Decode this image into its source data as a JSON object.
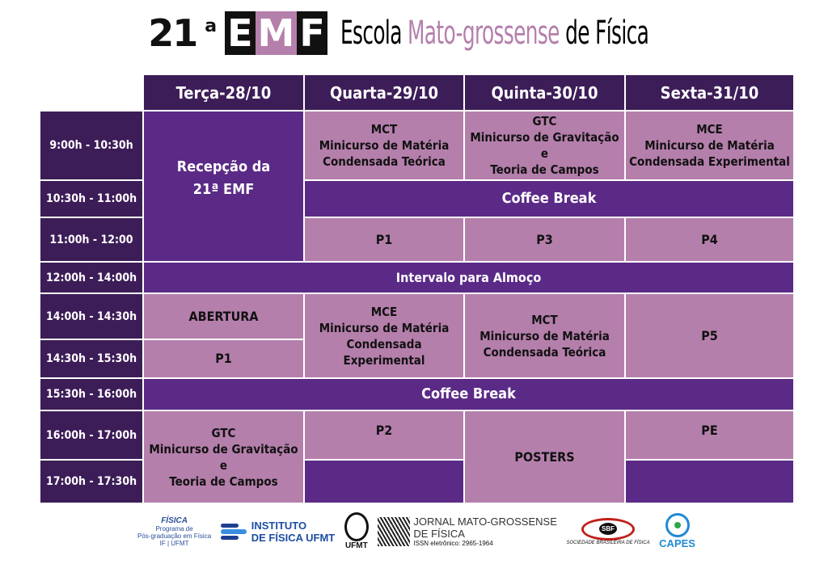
{
  "title": {
    "edition_number": "21",
    "edition_sup": "a",
    "emf": [
      "E",
      "M",
      "F"
    ],
    "escola": "Escola ",
    "mato": "Mato-grossense",
    "fisica": " de Física"
  },
  "days": [
    "Terça-28/10",
    "Quarta-29/10",
    "Quinta-30/10",
    "Sexta-31/10"
  ],
  "times": [
    "9:00h - 10:30h",
    "10:30h - 11:00h",
    "11:00h - 12:00",
    "12:00h - 14:00h",
    "14:00h - 14:30h",
    "14:30h - 15:30h",
    "15:30h - 16:00h",
    "16:00h - 17:00h",
    "17:00h - 17:30h"
  ],
  "events": {
    "recepcao": [
      "Recepção da",
      "21ª EMF"
    ],
    "mct": [
      "MCT",
      "Minicurso de Matéria",
      "Condensada Teórica"
    ],
    "gtc": [
      "GTC",
      "Minicurso de Gravitação e",
      "Teoria de Campos"
    ],
    "mce": [
      "MCE",
      "Minicurso de Matéria",
      "Condensada Experimental"
    ],
    "coffee": "Coffee Break",
    "p1": "P1",
    "p3": "P3",
    "p4": "P4",
    "p5": "P5",
    "p2": "P2",
    "pe": "PE",
    "almoco": "Intervalo para Almoço",
    "abertura": "ABERTURA",
    "posters": "POSTERS"
  },
  "colors": {
    "header": "#3d1d58",
    "purple": "#5b2a87",
    "pink": "#b57fac"
  },
  "logos": {
    "pg": [
      "FÍSICA",
      "Programa de",
      "Pós-graduação em Física",
      "IF | UFMT"
    ],
    "instituto": [
      "INSTITUTO",
      "DE FÍSICA UFMT"
    ],
    "ufmt": "UFMT",
    "jornal": [
      "JORNAL MATO-GROSSENSE",
      "DE FÍSICA",
      "ISSN eletrônico: 2965-1964"
    ],
    "sbf": [
      "SBF",
      "SOCIEDADE BRASILEIRA DE FÍSICA"
    ],
    "capes": "CAPES"
  }
}
